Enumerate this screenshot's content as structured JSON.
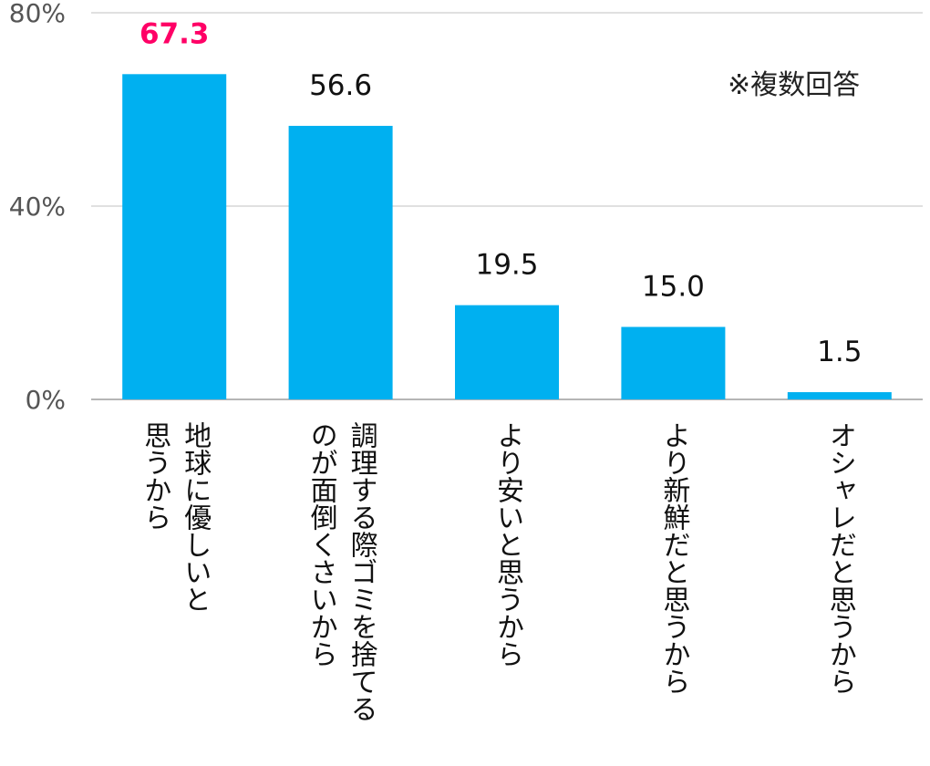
{
  "chart_data": {
    "type": "bar",
    "categories": [
      "地球に優しいと\n思うから",
      "調理する際ゴミを捨てる\nのが面倒くさいから",
      "より安いと思うから",
      "より新鮮だと思うから",
      "オシャレだと思うから"
    ],
    "values": [
      67.3,
      56.6,
      19.5,
      15.0,
      1.5
    ],
    "value_labels": [
      "67.3",
      "56.6",
      "19.5",
      "15.0",
      "1.5"
    ],
    "y_ticks": [
      "0%",
      "40%",
      "80%"
    ],
    "ylim": [
      0,
      80
    ],
    "grid": true,
    "bar_color": "#00B0F0",
    "highlight_color": "#FF0066",
    "highlight_index": 0,
    "note": "※複数回答"
  }
}
